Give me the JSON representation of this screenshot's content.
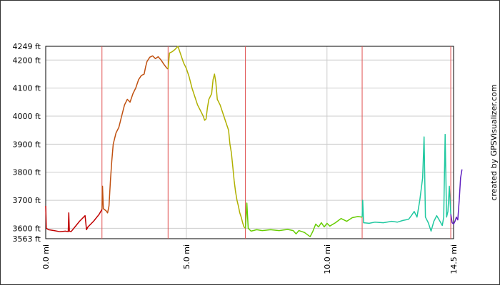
{
  "chart_data": {
    "type": "line",
    "title": "",
    "xlabel": "",
    "ylabel": "",
    "xlim": [
      0,
      14.5
    ],
    "ylim": [
      3563,
      4249
    ],
    "x_ticks": [
      {
        "value": 0,
        "label": "0.0 mi"
      },
      {
        "value": 5,
        "label": "5.0 mi"
      },
      {
        "value": 10,
        "label": "10.0 mi"
      },
      {
        "value": 14.5,
        "label": "14.5 mi"
      }
    ],
    "y_ticks": [
      {
        "value": 3563,
        "label": "3563 ft"
      },
      {
        "value": 3600,
        "label": "3600 ft"
      },
      {
        "value": 3700,
        "label": "3700 ft"
      },
      {
        "value": 3800,
        "label": "3800 ft"
      },
      {
        "value": 3900,
        "label": "3900 ft"
      },
      {
        "value": 4000,
        "label": "4000 ft"
      },
      {
        "value": 4100,
        "label": "4100 ft"
      },
      {
        "value": 4200,
        "label": "4200 ft"
      },
      {
        "value": 4249,
        "label": "4249 ft"
      }
    ],
    "grid": true,
    "segment_markers_mi": [
      2.0,
      4.35,
      7.1,
      11.25,
      14.4
    ],
    "gridline_color": "#cccccc",
    "marker_color": "#e05050",
    "segments": [
      {
        "color": "#c00000",
        "points": [
          [
            0,
            3680
          ],
          [
            0.02,
            3600
          ],
          [
            0.1,
            3595
          ],
          [
            0.3,
            3592
          ],
          [
            0.5,
            3588
          ],
          [
            0.7,
            3590
          ],
          [
            0.8,
            3588
          ],
          [
            0.82,
            3655
          ],
          [
            0.84,
            3590
          ],
          [
            0.9,
            3588
          ],
          [
            1.0,
            3600
          ],
          [
            1.2,
            3625
          ],
          [
            1.4,
            3645
          ],
          [
            1.45,
            3595
          ],
          [
            1.5,
            3605
          ],
          [
            1.7,
            3625
          ],
          [
            1.9,
            3650
          ],
          [
            2.0,
            3668
          ]
        ]
      },
      {
        "color": "#c05010",
        "points": [
          [
            2.0,
            3668
          ],
          [
            2.02,
            3750
          ],
          [
            2.05,
            3670
          ],
          [
            2.15,
            3662
          ],
          [
            2.2,
            3655
          ],
          [
            2.25,
            3680
          ],
          [
            2.3,
            3770
          ],
          [
            2.35,
            3840
          ],
          [
            2.4,
            3900
          ],
          [
            2.5,
            3940
          ],
          [
            2.6,
            3960
          ],
          [
            2.7,
            4000
          ],
          [
            2.8,
            4040
          ],
          [
            2.9,
            4060
          ],
          [
            3.0,
            4050
          ],
          [
            3.1,
            4080
          ],
          [
            3.2,
            4100
          ],
          [
            3.3,
            4130
          ],
          [
            3.4,
            4145
          ],
          [
            3.5,
            4150
          ],
          [
            3.55,
            4175
          ],
          [
            3.6,
            4195
          ],
          [
            3.7,
            4210
          ],
          [
            3.8,
            4215
          ],
          [
            3.9,
            4205
          ],
          [
            4.0,
            4212
          ],
          [
            4.1,
            4200
          ],
          [
            4.2,
            4185
          ],
          [
            4.3,
            4172
          ],
          [
            4.35,
            4168
          ]
        ]
      },
      {
        "color": "#b0b000",
        "points": [
          [
            4.35,
            4168
          ],
          [
            4.4,
            4225
          ],
          [
            4.5,
            4230
          ],
          [
            4.6,
            4238
          ],
          [
            4.7,
            4249
          ],
          [
            4.8,
            4220
          ],
          [
            4.9,
            4190
          ],
          [
            5.0,
            4170
          ],
          [
            5.1,
            4140
          ],
          [
            5.2,
            4100
          ],
          [
            5.3,
            4070
          ],
          [
            5.4,
            4040
          ],
          [
            5.5,
            4020
          ],
          [
            5.6,
            4000
          ],
          [
            5.65,
            3985
          ],
          [
            5.7,
            3990
          ],
          [
            5.75,
            4030
          ],
          [
            5.8,
            4060
          ],
          [
            5.9,
            4080
          ],
          [
            5.95,
            4130
          ],
          [
            6.0,
            4150
          ],
          [
            6.05,
            4120
          ],
          [
            6.1,
            4060
          ],
          [
            6.2,
            4040
          ],
          [
            6.3,
            4010
          ],
          [
            6.4,
            3980
          ],
          [
            6.5,
            3950
          ],
          [
            6.55,
            3900
          ],
          [
            6.6,
            3870
          ],
          [
            6.65,
            3820
          ],
          [
            6.7,
            3770
          ],
          [
            6.75,
            3730
          ],
          [
            6.8,
            3700
          ],
          [
            6.85,
            3680
          ],
          [
            6.9,
            3655
          ],
          [
            6.95,
            3640
          ],
          [
            7.0,
            3620
          ],
          [
            7.05,
            3605
          ],
          [
            7.1,
            3600
          ]
        ]
      },
      {
        "color": "#66cc00",
        "points": [
          [
            7.1,
            3600
          ],
          [
            7.15,
            3690
          ],
          [
            7.2,
            3600
          ],
          [
            7.3,
            3590
          ],
          [
            7.5,
            3595
          ],
          [
            7.7,
            3592
          ],
          [
            8.0,
            3595
          ],
          [
            8.3,
            3592
          ],
          [
            8.6,
            3596
          ],
          [
            8.8,
            3592
          ],
          [
            8.9,
            3580
          ],
          [
            9.0,
            3592
          ],
          [
            9.2,
            3585
          ],
          [
            9.4,
            3570
          ],
          [
            9.5,
            3590
          ],
          [
            9.6,
            3615
          ],
          [
            9.7,
            3605
          ],
          [
            9.8,
            3620
          ],
          [
            9.9,
            3605
          ],
          [
            10.0,
            3618
          ],
          [
            10.1,
            3608
          ],
          [
            10.3,
            3620
          ],
          [
            10.5,
            3635
          ],
          [
            10.7,
            3625
          ],
          [
            10.9,
            3638
          ],
          [
            11.1,
            3642
          ],
          [
            11.25,
            3640
          ]
        ]
      },
      {
        "color": "#20c8a0",
        "points": [
          [
            11.25,
            3640
          ],
          [
            11.27,
            3700
          ],
          [
            11.3,
            3620
          ],
          [
            11.5,
            3618
          ],
          [
            11.7,
            3622
          ],
          [
            12.0,
            3620
          ],
          [
            12.3,
            3625
          ],
          [
            12.5,
            3622
          ],
          [
            12.7,
            3628
          ],
          [
            12.9,
            3632
          ],
          [
            13.0,
            3645
          ],
          [
            13.1,
            3660
          ],
          [
            13.2,
            3640
          ],
          [
            13.3,
            3700
          ],
          [
            13.4,
            3780
          ],
          [
            13.45,
            3926
          ],
          [
            13.5,
            3640
          ],
          [
            13.6,
            3620
          ],
          [
            13.7,
            3590
          ],
          [
            13.8,
            3625
          ],
          [
            13.9,
            3645
          ],
          [
            14.0,
            3628
          ],
          [
            14.1,
            3610
          ],
          [
            14.15,
            3640
          ],
          [
            14.2,
            3935
          ],
          [
            14.25,
            3640
          ],
          [
            14.3,
            3660
          ],
          [
            14.35,
            3750
          ],
          [
            14.4,
            3650
          ]
        ]
      },
      {
        "color": "#6020c0",
        "points": [
          [
            14.4,
            3650
          ],
          [
            14.45,
            3620
          ],
          [
            14.5,
            3615
          ],
          [
            14.55,
            3625
          ],
          [
            14.6,
            3640
          ],
          [
            14.65,
            3630
          ],
          [
            14.7,
            3700
          ],
          [
            14.75,
            3780
          ],
          [
            14.8,
            3810
          ]
        ]
      }
    ]
  },
  "credit": "created by GPSVisualizer.com"
}
